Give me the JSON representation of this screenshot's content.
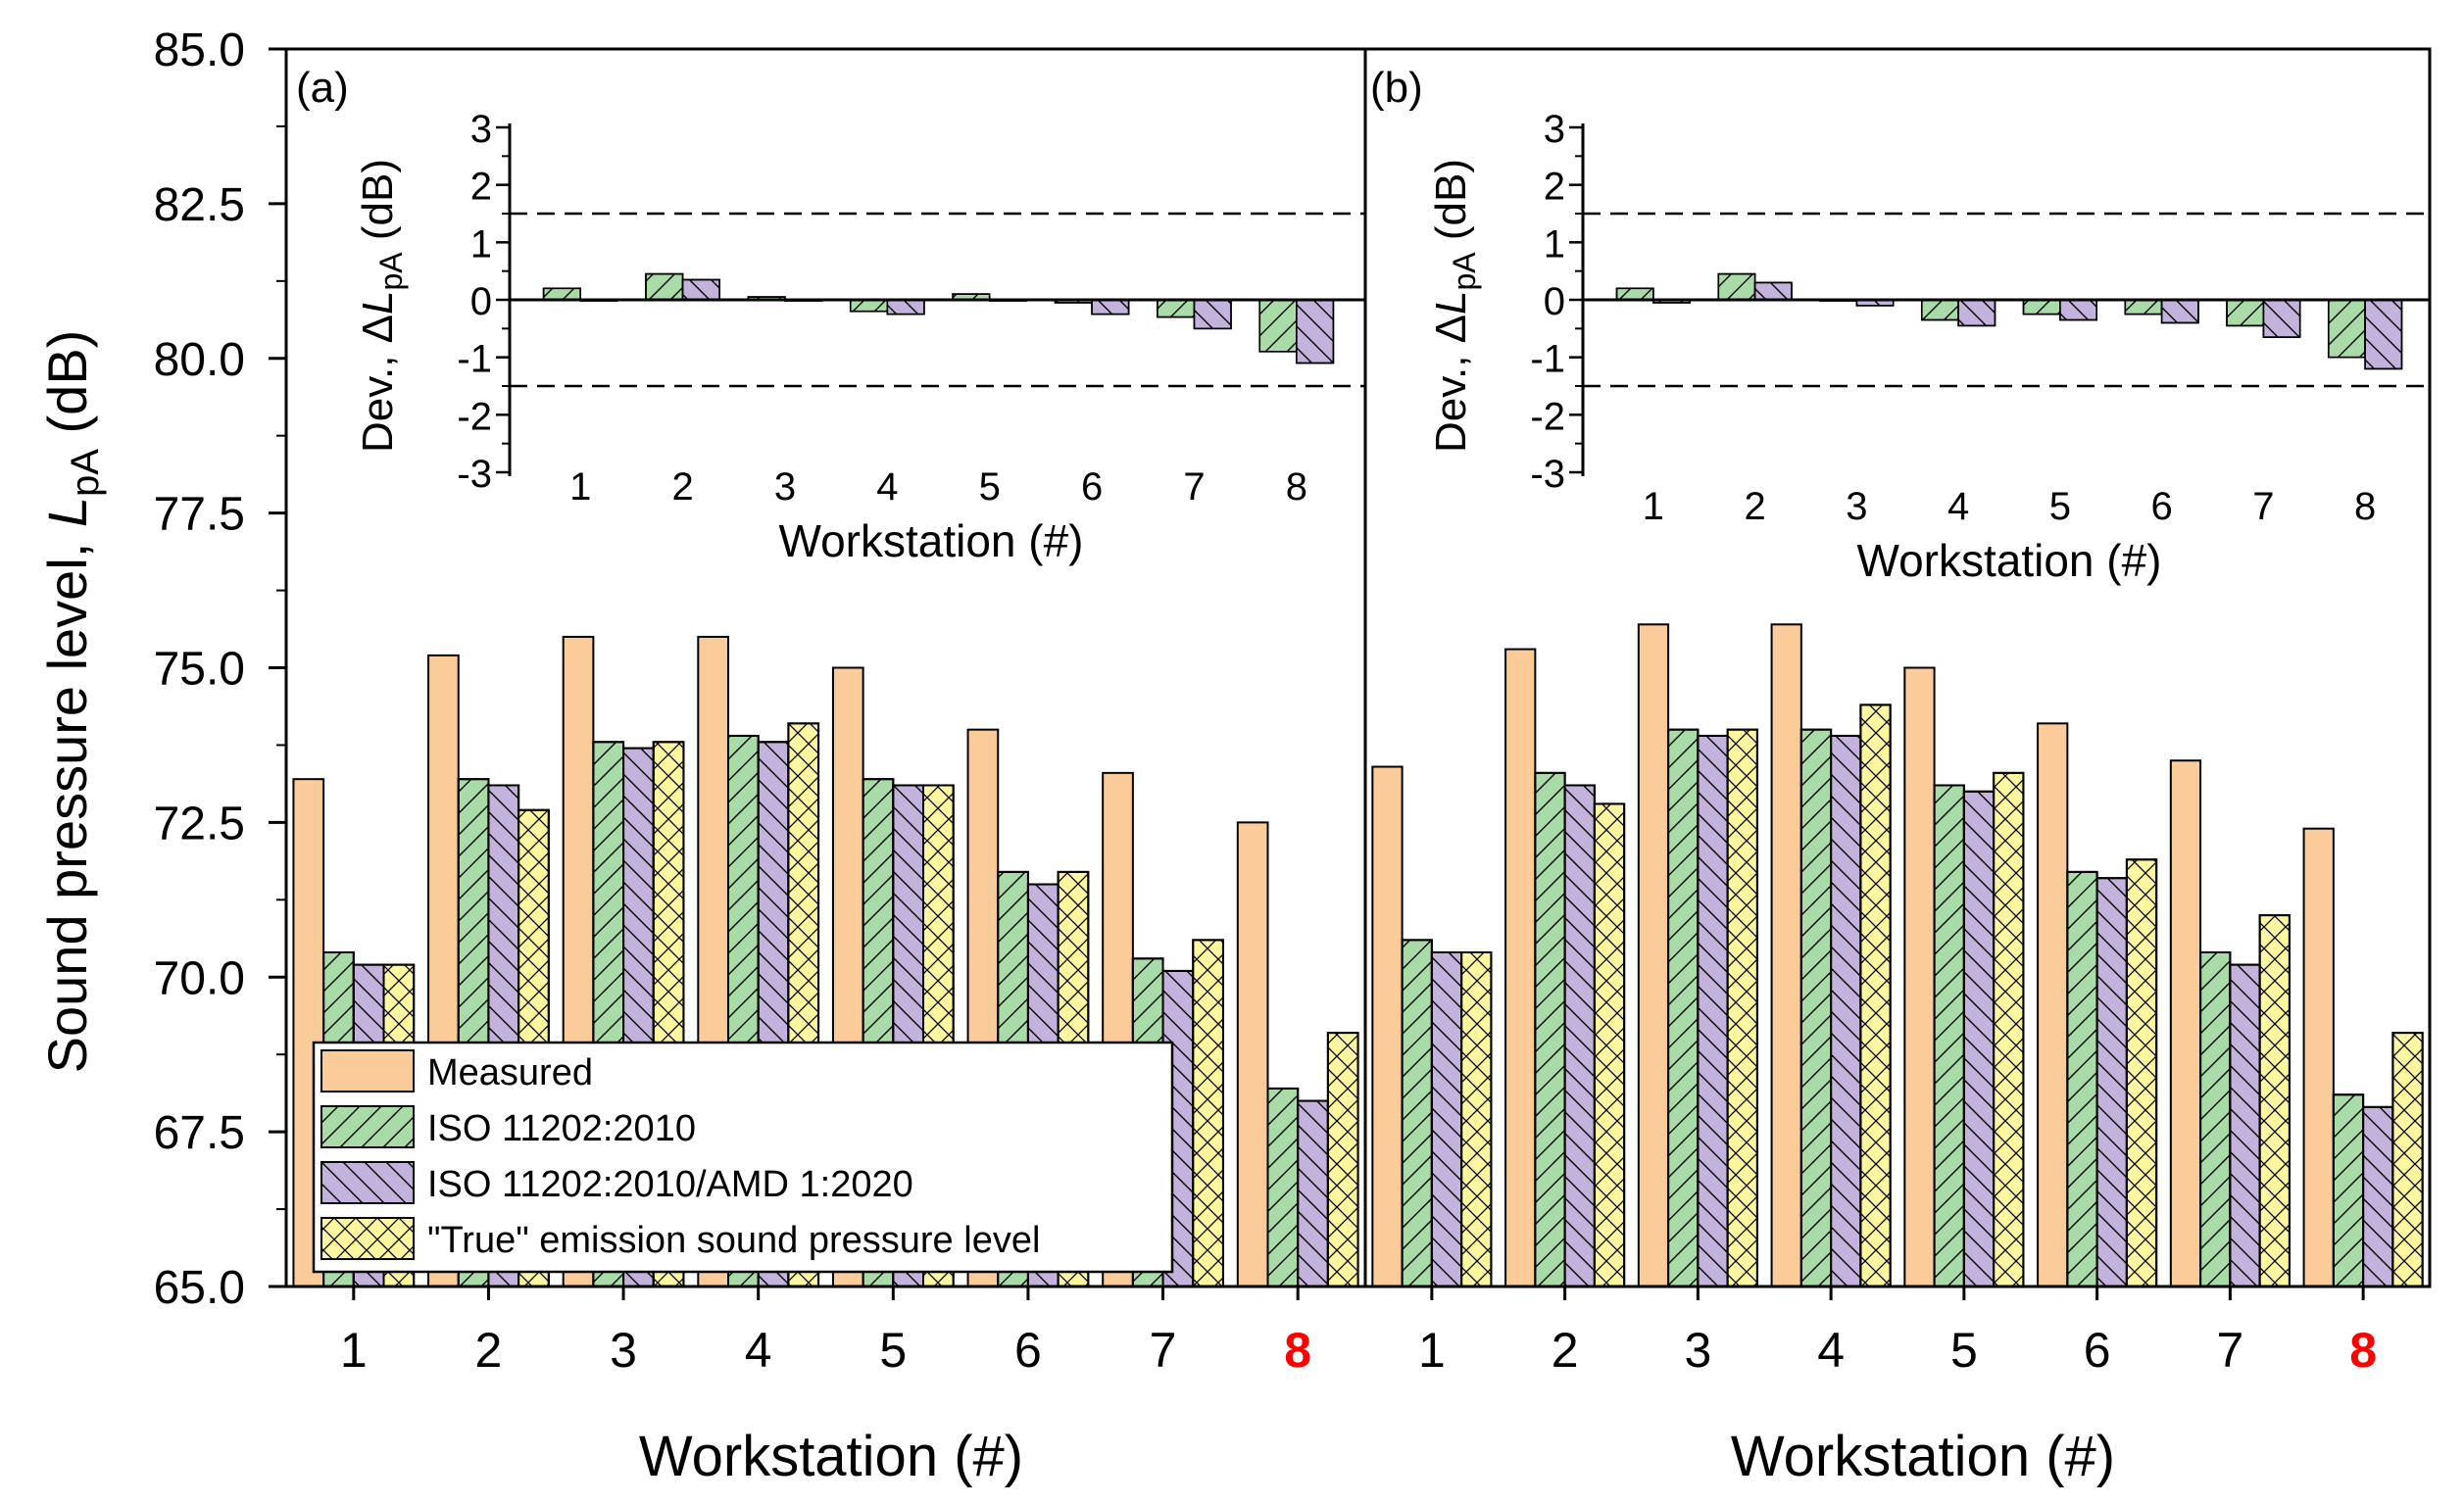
{
  "colors": {
    "measured": "#FCCB9A",
    "iso2010": "#A8DBA8",
    "amd2020": "#C3B3DC",
    "true_level": "#FFF6A0",
    "highlight": "#FF0000"
  },
  "legend": {
    "items": [
      {
        "key": "measured",
        "label": "Measured",
        "pattern": "none"
      },
      {
        "key": "iso2010",
        "label": "ISO 11202:2010",
        "pattern": "fwd"
      },
      {
        "key": "amd2020",
        "label": "ISO 11202:2010/AMD 1:2020",
        "pattern": "back"
      },
      {
        "key": "true_level",
        "label": "\"True\" emission sound pressure level",
        "pattern": "cross"
      }
    ]
  },
  "chart_data": [
    {
      "panel": "(a)",
      "type": "bar",
      "xlabel": "Workstation (#)",
      "ylabel_prefix": "Sound pressure level, ",
      "ylabel_sym": "L",
      "ylabel_sub": "pA",
      "ylabel_unit": " (dB)",
      "ylim": [
        65,
        85
      ],
      "yticks": [
        "65.0",
        "67.5",
        "70.0",
        "72.5",
        "75.0",
        "77.5",
        "80.0",
        "82.5",
        "85.0"
      ],
      "categories": [
        "1",
        "2",
        "3",
        "4",
        "5",
        "6",
        "7",
        "8"
      ],
      "highlight_category": "8",
      "series": [
        {
          "name": "Measured",
          "values": [
            73.2,
            75.2,
            75.5,
            75.5,
            75.0,
            74.0,
            73.3,
            72.5
          ]
        },
        {
          "name": "ISO 11202:2010",
          "values": [
            70.4,
            73.2,
            73.8,
            73.9,
            73.2,
            71.7,
            70.3,
            68.2
          ]
        },
        {
          "name": "ISO 11202:2010/AMD 1:2020",
          "values": [
            70.2,
            73.1,
            73.7,
            73.8,
            73.1,
            71.5,
            70.1,
            68.0
          ]
        },
        {
          "name": "\"True\" emission sound pressure level",
          "values": [
            70.2,
            72.7,
            73.8,
            74.1,
            73.1,
            71.7,
            70.6,
            69.1
          ]
        }
      ],
      "inset": {
        "type": "bar",
        "xlabel": "Workstation (#)",
        "ylabel_prefix": "Dev., Δ",
        "ylabel_sym": "L",
        "ylabel_sub": "pA",
        "ylabel_unit": " (dB)",
        "ylim": [
          -3,
          3
        ],
        "yticks": [
          "-3",
          "-2",
          "-1",
          "0",
          "1",
          "2",
          "3"
        ],
        "reference_lines": [
          -1.5,
          1.5
        ],
        "categories": [
          "1",
          "2",
          "3",
          "4",
          "5",
          "6",
          "7",
          "8"
        ],
        "series": [
          {
            "name": "ISO 11202:2010",
            "values": [
              0.2,
              0.45,
              0.05,
              -0.2,
              0.1,
              -0.05,
              -0.3,
              -0.9
            ]
          },
          {
            "name": "ISO 11202:2010/AMD 1:2020",
            "values": [
              0.0,
              0.35,
              0.0,
              -0.25,
              0.0,
              -0.25,
              -0.5,
              -1.1
            ]
          }
        ]
      }
    },
    {
      "panel": "(b)",
      "type": "bar",
      "xlabel": "Workstation (#)",
      "ylim": [
        65,
        85
      ],
      "categories": [
        "1",
        "2",
        "3",
        "4",
        "5",
        "6",
        "7",
        "8"
      ],
      "highlight_category": "8",
      "series": [
        {
          "name": "Measured",
          "values": [
            73.4,
            75.3,
            75.7,
            75.7,
            75.0,
            74.1,
            73.5,
            72.4
          ]
        },
        {
          "name": "ISO 11202:2010",
          "values": [
            70.6,
            73.3,
            74.0,
            74.0,
            73.1,
            71.7,
            70.4,
            68.1
          ]
        },
        {
          "name": "ISO 11202:2010/AMD 1:2020",
          "values": [
            70.4,
            73.1,
            73.9,
            73.9,
            73.0,
            71.6,
            70.2,
            67.9
          ]
        },
        {
          "name": "\"True\" emission sound pressure level",
          "values": [
            70.4,
            72.8,
            74.0,
            74.4,
            73.3,
            71.9,
            71.0,
            69.1
          ]
        }
      ],
      "inset": {
        "type": "bar",
        "xlabel": "Workstation (#)",
        "ylabel_prefix": "Dev., Δ",
        "ylabel_sym": "L",
        "ylabel_sub": "pA",
        "ylabel_unit": " (dB)",
        "ylim": [
          -3,
          3
        ],
        "yticks": [
          "-3",
          "-2",
          "-1",
          "0",
          "1",
          "2",
          "3"
        ],
        "reference_lines": [
          -1.5,
          1.5
        ],
        "categories": [
          "1",
          "2",
          "3",
          "4",
          "5",
          "6",
          "7",
          "8"
        ],
        "series": [
          {
            "name": "ISO 11202:2010",
            "values": [
              0.2,
              0.45,
              0.0,
              -0.35,
              -0.25,
              -0.25,
              -0.45,
              -1.0
            ]
          },
          {
            "name": "ISO 11202:2010/AMD 1:2020",
            "values": [
              -0.05,
              0.3,
              -0.1,
              -0.45,
              -0.35,
              -0.4,
              -0.65,
              -1.2
            ]
          }
        ]
      }
    }
  ]
}
